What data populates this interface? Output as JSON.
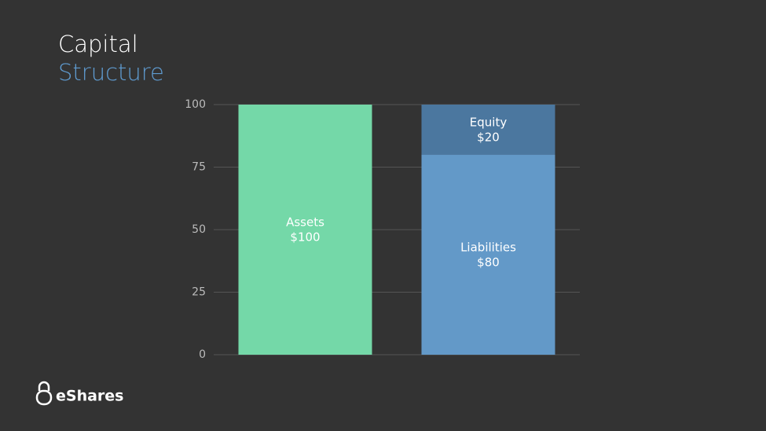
{
  "chart_data": {
    "type": "stacked-bar",
    "title": "Capital",
    "subtitle": "Structure",
    "categories": [
      null,
      null
    ],
    "series": [
      {
        "name": "Assets",
        "color": "#74d8a8",
        "values": [
          100,
          null
        ],
        "value_labels": [
          "$100",
          null
        ]
      },
      {
        "name": "Liabilities",
        "color": "#6399c8",
        "values": [
          null,
          80
        ],
        "value_labels": [
          null,
          "$80"
        ]
      },
      {
        "name": "Equity",
        "color": "#4b779f",
        "values": [
          null,
          20
        ],
        "value_labels": [
          null,
          "$20"
        ]
      }
    ],
    "ylim": [
      0,
      100
    ],
    "yticks": [
      0,
      25,
      50,
      75,
      100
    ],
    "grid": true
  },
  "footer": {
    "logo_text": "eShares"
  }
}
